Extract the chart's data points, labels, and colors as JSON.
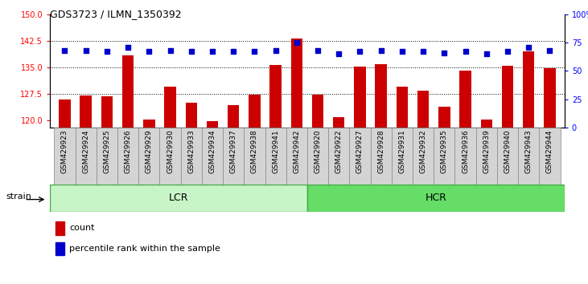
{
  "title": "GDS3723 / ILMN_1350392",
  "categories": [
    "GSM429923",
    "GSM429924",
    "GSM429925",
    "GSM429926",
    "GSM429929",
    "GSM429930",
    "GSM429933",
    "GSM429934",
    "GSM429937",
    "GSM429938",
    "GSM429941",
    "GSM429942",
    "GSM429920",
    "GSM429922",
    "GSM429927",
    "GSM429928",
    "GSM429931",
    "GSM429932",
    "GSM429935",
    "GSM429936",
    "GSM429939",
    "GSM429940",
    "GSM429943",
    "GSM429944"
  ],
  "bar_values": [
    126.0,
    127.2,
    126.8,
    138.5,
    120.4,
    129.5,
    125.0,
    119.8,
    124.5,
    127.3,
    135.8,
    143.2,
    127.3,
    121.0,
    135.2,
    136.0,
    129.5,
    128.5,
    124.0,
    134.0,
    120.4,
    135.5,
    139.5,
    134.8
  ],
  "dot_values": [
    68,
    68,
    67,
    71,
    67,
    68,
    67,
    67,
    67,
    67,
    68,
    75,
    68,
    65,
    67,
    68,
    67,
    67,
    66,
    67,
    65,
    67,
    71,
    68
  ],
  "lcr_count": 12,
  "hcr_count": 12,
  "ylim_left": [
    118,
    150
  ],
  "ylim_right": [
    0,
    100
  ],
  "yticks_left": [
    120,
    127.5,
    135,
    142.5,
    150
  ],
  "yticks_right": [
    0,
    25,
    50,
    75,
    100
  ],
  "bar_color": "#cc0000",
  "dot_color": "#0000cc",
  "lcr_color": "#c8f5c8",
  "hcr_color": "#66dd66",
  "tick_bg_color": "#d4d4d4",
  "tick_border_color": "#888888",
  "strain_label": "strain",
  "lcr_label": "LCR",
  "hcr_label": "HCR",
  "legend_count_label": "count",
  "legend_pct_label": "percentile rank within the sample",
  "grid_lines": [
    127.5,
    135,
    142.5
  ]
}
